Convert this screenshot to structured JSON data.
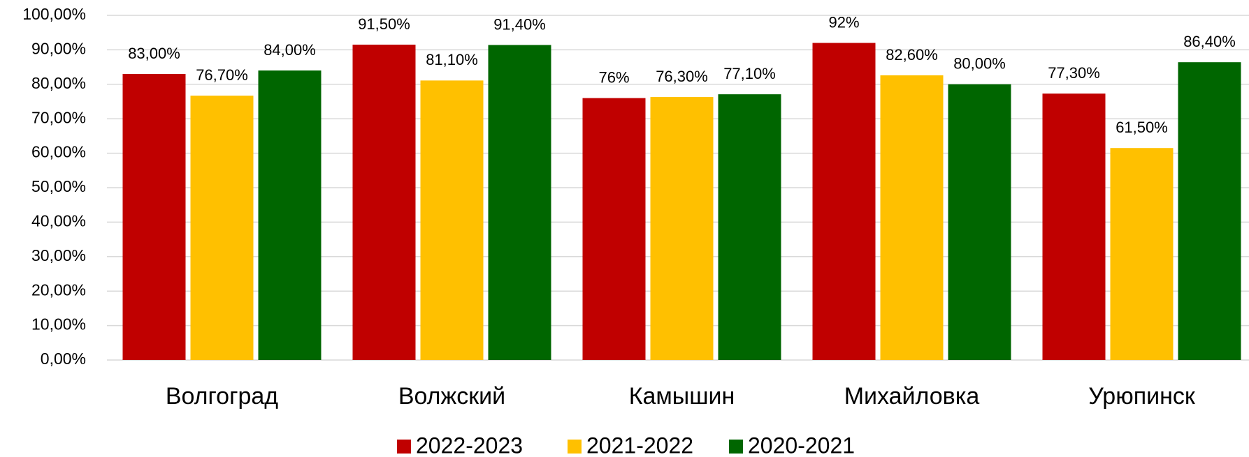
{
  "chart_data": {
    "type": "bar",
    "categories": [
      "Волгоград",
      "Волжский",
      "Камышин",
      "Михайловка",
      "Урюпинск"
    ],
    "series": [
      {
        "name": "2022-2023",
        "color": "#c00000",
        "values": [
          83,
          91.5,
          76,
          92,
          77.3
        ],
        "value_labels": [
          "83,00%",
          "91,50%",
          "76%",
          "92%",
          "77,30%"
        ]
      },
      {
        "name": "2021-2022",
        "color": "#ffc000",
        "values": [
          76.7,
          81.1,
          76.3,
          82.6,
          61.5
        ],
        "value_labels": [
          "76,70%",
          "81,10%",
          "76,30%",
          "82,60%",
          "61,50%"
        ]
      },
      {
        "name": "2020-2021",
        "color": "#006600",
        "values": [
          84,
          91.4,
          77.1,
          80,
          86.4
        ],
        "value_labels": [
          "84,00%",
          "91,40%",
          "77,10%",
          "80,00%",
          "86,40%"
        ]
      }
    ],
    "ylim": [
      0,
      100
    ],
    "yticks": [
      {
        "value": 0,
        "label": "0,00%"
      },
      {
        "value": 10,
        "label": "10,00%"
      },
      {
        "value": 20,
        "label": "20,00%"
      },
      {
        "value": 30,
        "label": "30,00%"
      },
      {
        "value": 40,
        "label": "40,00%"
      },
      {
        "value": 50,
        "label": "50,00%"
      },
      {
        "value": 60,
        "label": "60,00%"
      },
      {
        "value": 70,
        "label": "70,00%"
      },
      {
        "value": 80,
        "label": "80,00%"
      },
      {
        "value": 90,
        "label": "90,00%"
      },
      {
        "value": 100,
        "label": "100,00%"
      }
    ],
    "grid": true,
    "legend": "bottom"
  }
}
